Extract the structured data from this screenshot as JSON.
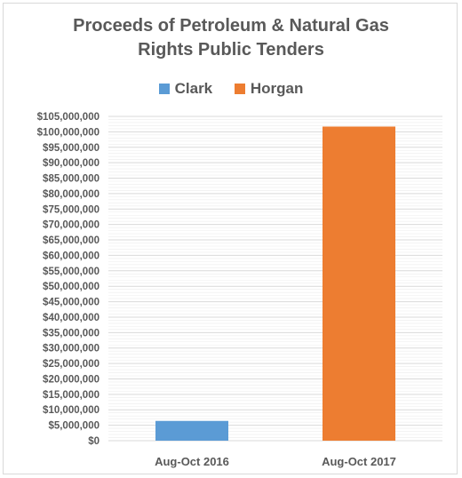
{
  "chart_data": {
    "type": "bar",
    "title_lines": [
      "Proceeds of Petroleum & Natural Gas",
      "Rights Public Tenders"
    ],
    "categories": [
      "Aug-Oct 2016",
      "Aug-Oct 2017"
    ],
    "series": [
      {
        "name": "Clark",
        "color": "#5b9bd5",
        "values": [
          6400000,
          null
        ]
      },
      {
        "name": "Horgan",
        "color": "#ed7d31",
        "values": [
          null,
          101700000
        ]
      }
    ],
    "y_ticks": [
      "$0",
      "$5,000,000",
      "$10,000,000",
      "$15,000,000",
      "$20,000,000",
      "$25,000,000",
      "$30,000,000",
      "$35,000,000",
      "$40,000,000",
      "$45,000,000",
      "$50,000,000",
      "$55,000,000",
      "$60,000,000",
      "$65,000,000",
      "$70,000,000",
      "$75,000,000",
      "$80,000,000",
      "$85,000,000",
      "$90,000,000",
      "$95,000,000",
      "$100,000,000",
      "$105,000,000"
    ],
    "ylim": [
      0,
      105000000
    ],
    "y_step": 5000000,
    "minor_step": 1000000,
    "grid": true,
    "legend_position": "top",
    "colors": {
      "grid": "#d9d9d9",
      "text": "#595959"
    }
  }
}
